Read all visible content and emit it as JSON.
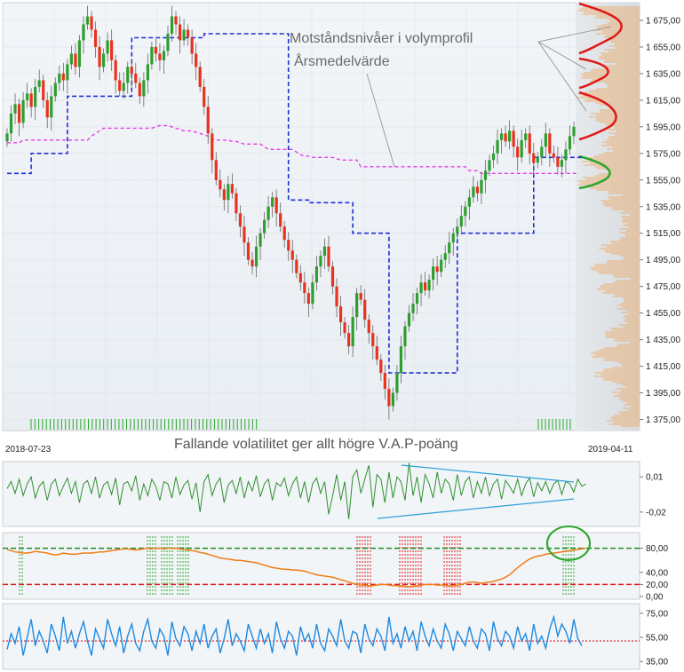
{
  "main": {
    "annotation_line1": "Motståndsnivåer i volymprofil",
    "annotation_line2": "Årsmedelvärde",
    "date_start": "2018-07-23",
    "date_end": "2019-04-11",
    "volatility_note": "Fallande volatilitet ger allt högre V.A.P-poäng"
  },
  "colors": {
    "up": "#2e9e2e",
    "down": "#e8321e",
    "resistance": "#1f2fd6",
    "yearly_mean": "#e63ce6",
    "volume_profile": "#f0a050",
    "volume_peaks": "#e01818",
    "support_peak": "#2aa52a",
    "oscillator": "#2f8f2f",
    "trendline": "#2aa0d8",
    "vap": "#f07e16",
    "rsi": "#1f8ae0",
    "grid_bg": "#e9eef3"
  },
  "chart_data": [
    {
      "type": "candlestick",
      "name": "price",
      "ylim": [
        1370,
        1685
      ],
      "yticks": [
        "1 375,00",
        "1 395,00",
        "1 415,00",
        "1 435,00",
        "1 455,00",
        "1 475,00",
        "1 495,00",
        "1 515,00",
        "1 535,00",
        "1 555,00",
        "1 575,00",
        "1 595,00",
        "1 615,00",
        "1 635,00",
        "1 655,00",
        "1 675,00"
      ],
      "close": [
        1590,
        1605,
        1612,
        1598,
        1615,
        1620,
        1610,
        1625,
        1630,
        1615,
        1602,
        1618,
        1628,
        1635,
        1630,
        1642,
        1650,
        1640,
        1660,
        1672,
        1678,
        1668,
        1655,
        1640,
        1650,
        1660,
        1645,
        1630,
        1622,
        1628,
        1640,
        1635,
        1628,
        1618,
        1630,
        1642,
        1655,
        1650,
        1645,
        1652,
        1665,
        1678,
        1672,
        1660,
        1668,
        1662,
        1650,
        1640,
        1625,
        1610,
        1590,
        1570,
        1555,
        1548,
        1540,
        1552,
        1545,
        1530,
        1520,
        1508,
        1495,
        1490,
        1505,
        1515,
        1525,
        1535,
        1542,
        1530,
        1520,
        1510,
        1502,
        1495,
        1485,
        1478,
        1470,
        1462,
        1478,
        1490,
        1498,
        1505,
        1490,
        1475,
        1460,
        1448,
        1440,
        1430,
        1452,
        1470,
        1465,
        1450,
        1440,
        1430,
        1420,
        1410,
        1398,
        1385,
        1395,
        1410,
        1430,
        1445,
        1455,
        1462,
        1470,
        1478,
        1472,
        1480,
        1490,
        1486,
        1495,
        1500,
        1508,
        1515,
        1520,
        1528,
        1535,
        1542,
        1550,
        1545,
        1555,
        1562,
        1570,
        1575,
        1585,
        1590,
        1584,
        1592,
        1580,
        1572,
        1585,
        1590,
        1575,
        1568,
        1572,
        1580,
        1590,
        1575,
        1572,
        1565,
        1570,
        1578,
        1588,
        1595
      ],
      "annotations": [
        "Motståndsnivåer i volymprofil",
        "Årsmedelvärde"
      ]
    },
    {
      "type": "step",
      "name": "resistance",
      "values": [
        1560,
        1560,
        1560,
        1560,
        1560,
        1560,
        1575,
        1575,
        1575,
        1575,
        1575,
        1575,
        1575,
        1575,
        1575,
        1618,
        1618,
        1618,
        1618,
        1618,
        1618,
        1618,
        1618,
        1618,
        1618,
        1618,
        1618,
        1618,
        1618,
        1618,
        1618,
        1662,
        1662,
        1662,
        1662,
        1662,
        1662,
        1662,
        1662,
        1662,
        1662,
        1662,
        1662,
        1662,
        1662,
        1662,
        1662,
        1662,
        1662,
        1665,
        1665,
        1665,
        1665,
        1665,
        1665,
        1665,
        1665,
        1665,
        1665,
        1665,
        1665,
        1665,
        1665,
        1665,
        1665,
        1665,
        1665,
        1665,
        1665,
        1665,
        1540,
        1540,
        1540,
        1540,
        1540,
        1538,
        1538,
        1538,
        1538,
        1538,
        1538,
        1538,
        1538,
        1538,
        1538,
        1538,
        1515,
        1515,
        1515,
        1515,
        1515,
        1515,
        1515,
        1515,
        1515,
        1410,
        1410,
        1410,
        1410,
        1410,
        1410,
        1410,
        1410,
        1410,
        1410,
        1410,
        1410,
        1410,
        1410,
        1410,
        1410,
        1410,
        1515,
        1515,
        1515,
        1515,
        1515,
        1515,
        1515,
        1515,
        1515,
        1515,
        1515,
        1515,
        1515,
        1515,
        1515,
        1515,
        1515,
        1515,
        1515,
        1572,
        1572,
        1572,
        1572,
        1572,
        1572,
        1572,
        1572,
        1572,
        1572,
        1572,
        1572,
        1572
      ]
    },
    {
      "type": "line",
      "name": "yearly_mean",
      "values": [
        1583,
        1583,
        1583,
        1583,
        1585,
        1585,
        1585,
        1585,
        1585,
        1585,
        1585,
        1585,
        1585,
        1585,
        1585,
        1585,
        1585,
        1585,
        1585,
        1585,
        1585,
        1588,
        1590,
        1592,
        1594,
        1594,
        1594,
        1594,
        1594,
        1594,
        1594,
        1594,
        1594,
        1594,
        1594,
        1594,
        1594,
        1595,
        1596,
        1596,
        1596,
        1595,
        1594,
        1593,
        1592,
        1592,
        1592,
        1591,
        1590,
        1589,
        1588,
        1586,
        1585,
        1585,
        1585,
        1585,
        1584,
        1584,
        1583,
        1582,
        1582,
        1582,
        1582,
        1582,
        1580,
        1578,
        1578,
        1578,
        1578,
        1578,
        1578,
        1578,
        1576,
        1574,
        1573,
        1573,
        1572,
        1572,
        1572,
        1572,
        1572,
        1572,
        1571,
        1570,
        1570,
        1570,
        1570,
        1570,
        1565,
        1565,
        1565,
        1565,
        1565,
        1565,
        1565,
        1565,
        1565,
        1565,
        1565,
        1565,
        1565,
        1565,
        1565,
        1565,
        1565,
        1565,
        1565,
        1565,
        1565,
        1565,
        1565,
        1565,
        1565,
        1565,
        1565,
        1562,
        1562,
        1562,
        1560,
        1560,
        1560,
        1560,
        1560,
        1560,
        1560,
        1560,
        1560,
        1560,
        1560,
        1560,
        1560,
        1560,
        1560,
        1560,
        1560,
        1560,
        1560,
        1560,
        1560,
        1560,
        1560,
        1560,
        1560
      ]
    },
    {
      "type": "line",
      "name": "volatility_oscillator",
      "ylim": [
        -0.03,
        0.02
      ],
      "yticks": [
        "0,01",
        "-0,02"
      ],
      "values": [
        0,
        0.006,
        -0.004,
        0.008,
        -0.006,
        0.004,
        0.01,
        -0.008,
        0.002,
        0.006,
        -0.01,
        0.004,
        0.008,
        -0.006,
        0.002,
        0.009,
        -0.004,
        0.006,
        -0.012,
        0.004,
        0.007,
        -0.004,
        0.01,
        -0.008,
        0.003,
        0.006,
        -0.005,
        0.009,
        -0.014,
        0.004,
        0.006,
        -0.002,
        0.011,
        -0.01,
        0.004,
        -0.006,
        0.008,
        0.002,
        -0.01,
        0.006,
        0.004,
        -0.008,
        0.01,
        -0.005,
        0.003,
        0.007,
        -0.009,
        0.005,
        -0.02,
        0.006,
        0.012,
        -0.006,
        0.004,
        0.009,
        -0.012,
        0.003,
        0.007,
        -0.004,
        0.01,
        -0.008,
        0.006,
        -0.002,
        0.011,
        -0.007,
        0.004,
        0.008,
        -0.01,
        0.005,
        0.002,
        0.009,
        -0.006,
        0.004,
        0.01,
        -0.008,
        0.006,
        -0.012,
        0.004,
        0.009,
        -0.004,
        0.006,
        -0.022,
        -0.006,
        0.012,
        -0.01,
        0.006,
        -0.026,
        0.01,
        0.016,
        -0.004,
        0.008,
        0.02,
        -0.016,
        0.012,
        0.008,
        -0.012,
        0.014,
        -0.008,
        0.01,
        0.006,
        -0.01,
        0.022,
        -0.006,
        0.01,
        -0.012,
        0.012,
        0.004,
        -0.008,
        0.014,
        -0.004,
        0.008,
        0.004,
        -0.01,
        0.012,
        -0.006,
        0.006,
        0.01,
        -0.008,
        0.006,
        -0.004,
        0.01,
        -0.006,
        0.004,
        0.008,
        -0.009,
        0.007,
        0.002,
        -0.004,
        0.008,
        -0.006,
        0.004,
        0.009,
        -0.007,
        0.005,
        -0.002,
        0.006,
        -0.004,
        0.004,
        0.007,
        -0.005,
        0.006,
        0.004,
        -0.003,
        0.008,
        0.002,
        0.004
      ]
    },
    {
      "type": "line",
      "name": "vap_score",
      "ylim": [
        0,
        100
      ],
      "yticks": [
        "80,00",
        "40,00",
        "20,00",
        "0,00"
      ],
      "upper_level": 80,
      "lower_level": 20,
      "values": [
        78,
        76,
        74,
        73,
        72,
        72,
        73,
        75,
        74,
        73,
        72,
        70,
        69,
        70,
        72,
        71,
        70,
        70,
        71,
        72,
        72,
        72,
        73,
        74,
        74,
        75,
        76,
        77,
        78,
        79,
        79,
        78,
        77,
        78,
        79,
        80,
        79,
        80,
        80,
        79,
        80,
        80,
        80,
        79,
        78,
        77,
        76,
        75,
        73,
        72,
        70,
        68,
        66,
        64,
        63,
        62,
        61,
        60,
        60,
        59,
        58,
        57,
        56,
        54,
        52,
        50,
        48,
        47,
        46,
        45,
        45,
        44,
        44,
        43,
        42,
        40,
        38,
        36,
        35,
        34,
        33,
        32,
        30,
        28,
        26,
        24,
        22,
        20,
        19,
        19,
        18,
        18,
        19,
        20,
        20,
        19,
        18,
        18,
        18,
        17,
        16,
        17,
        18,
        19,
        20,
        20,
        20,
        19,
        19,
        19,
        18,
        18,
        19,
        20,
        22,
        24,
        24,
        23,
        22,
        23,
        24,
        25,
        27,
        29,
        32,
        36,
        42,
        48,
        53,
        58,
        62,
        65,
        67,
        68,
        70,
        71,
        72,
        73,
        74,
        75,
        76,
        77,
        78,
        79,
        80
      ]
    },
    {
      "type": "line",
      "name": "rsi",
      "ylim": [
        30,
        80
      ],
      "yticks": [
        "75,00",
        "55,00",
        "35,00"
      ],
      "reference_level": 52,
      "values": [
        45,
        58,
        50,
        64,
        40,
        55,
        70,
        48,
        60,
        52,
        42,
        66,
        56,
        44,
        72,
        50,
        60,
        46,
        58,
        68,
        52,
        40,
        62,
        54,
        46,
        70,
        58,
        48,
        64,
        42,
        56,
        66,
        50,
        44,
        60,
        70,
        52,
        46,
        62,
        56,
        40,
        68,
        54,
        48,
        64,
        58,
        44,
        60,
        50,
        66,
        46,
        56,
        62,
        42,
        54,
        70,
        48,
        58,
        52,
        44,
        66,
        56,
        46,
        62,
        50,
        58,
        42,
        68,
        54,
        46,
        60,
        56,
        40,
        64,
        52,
        58,
        46,
        66,
        50,
        44,
        62,
        56,
        48,
        70,
        52,
        46,
        60,
        58,
        42,
        66,
        54,
        48,
        62,
        56,
        44,
        72,
        50,
        58,
        46,
        64,
        52,
        60,
        44,
        68,
        56,
        48,
        62,
        52,
        46,
        66,
        58,
        44,
        60,
        54,
        48,
        64,
        52,
        46,
        62,
        58,
        44,
        68,
        54,
        48,
        60,
        56,
        46,
        64,
        52,
        58,
        44,
        66,
        50,
        56,
        46,
        62,
        72,
        56,
        66,
        60,
        50,
        70,
        54,
        48
      ]
    }
  ]
}
